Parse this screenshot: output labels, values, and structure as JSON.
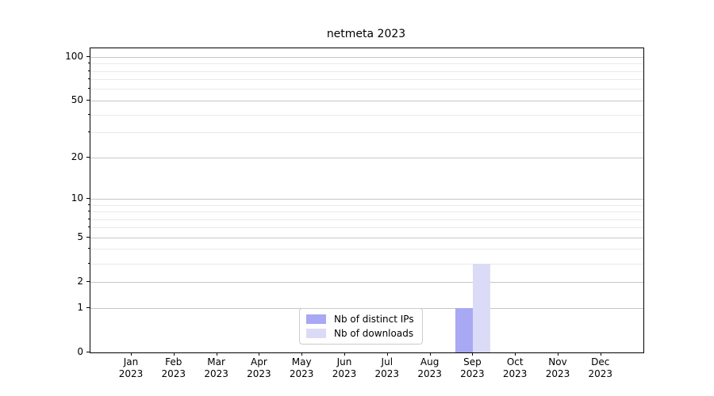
{
  "chart_data": {
    "type": "bar",
    "title": "netmeta 2023",
    "categories": [
      "Jan",
      "Feb",
      "Mar",
      "Apr",
      "May",
      "Jun",
      "Jul",
      "Aug",
      "Sep",
      "Oct",
      "Nov",
      "Dec"
    ],
    "category_year": "2023",
    "series": [
      {
        "name": "Nb of distinct IPs",
        "color": "#a8a8f4",
        "values": [
          0,
          0,
          0,
          0,
          0,
          0,
          0,
          0,
          1,
          0,
          0,
          0
        ]
      },
      {
        "name": "Nb of downloads",
        "color": "#dbdbf8",
        "values": [
          0,
          0,
          0,
          0,
          0,
          0,
          0,
          0,
          3,
          0,
          0,
          0
        ]
      }
    ],
    "yscale": "log1p",
    "ylim": [
      0,
      113
    ],
    "y_major_ticks": [
      0,
      1,
      2,
      5,
      10,
      20,
      50,
      100
    ],
    "y_minor_gridlines": [
      3,
      4,
      6,
      7,
      8,
      9,
      30,
      40,
      60,
      70,
      80,
      90
    ],
    "grid": "horizontal",
    "legend_position": "lower center"
  },
  "colors": {
    "background": "#ffffff",
    "spine": "#000000",
    "major_grid": "#c6c6c6",
    "minor_grid": "#e9e9e9",
    "tick_text": "#000000"
  }
}
